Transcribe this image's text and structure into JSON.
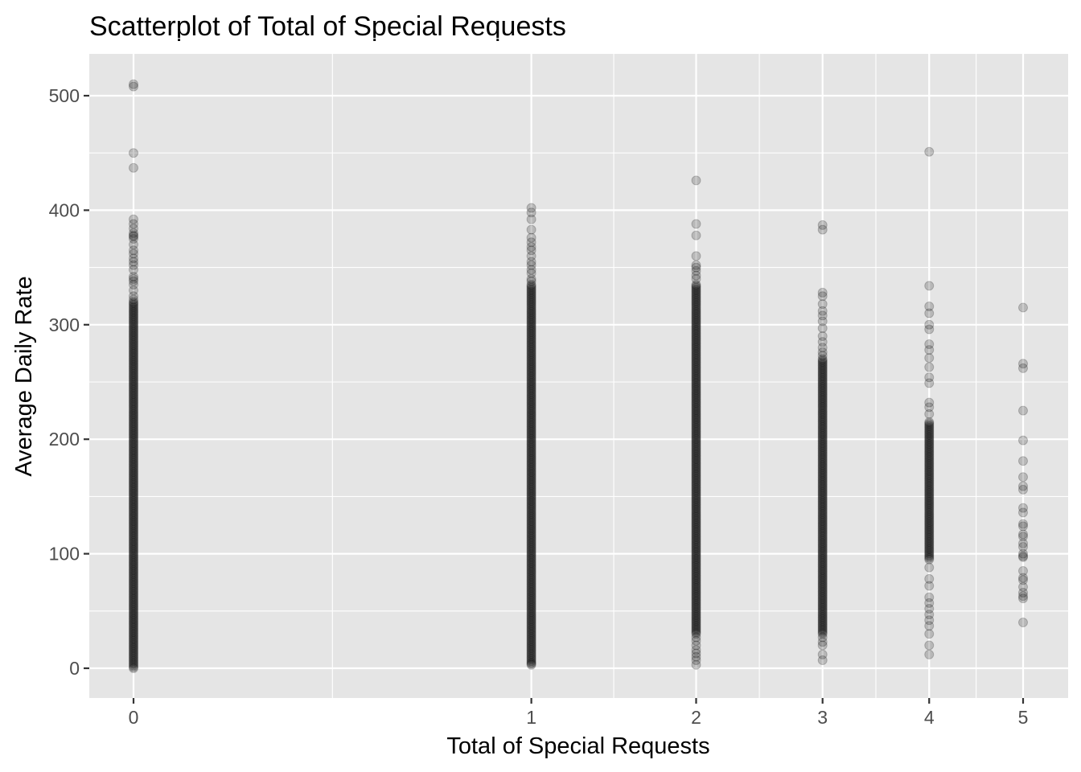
{
  "chart_data": {
    "type": "scatter",
    "title": "Scatterplot of Total of Special Requests",
    "xlabel": "Total of Special Requests",
    "ylabel": "Average Daily Rate",
    "x_scale": "sqrt",
    "xlim": [
      0,
      5
    ],
    "ylim": [
      0,
      510
    ],
    "x_ticks": [
      0,
      1,
      2,
      3,
      4,
      5
    ],
    "y_ticks": [
      0,
      100,
      200,
      300,
      400,
      500
    ],
    "grid": true,
    "legend": "none",
    "point_color": "#000000",
    "point_opacity": 0.2,
    "background_color": "#e5e5e5",
    "grid_color": "#ffffff",
    "groups": [
      {
        "x": 0,
        "dense_range": [
          0,
          320
        ],
        "points": [
          510,
          508,
          450,
          437,
          392,
          388,
          384,
          380,
          378,
          377,
          375,
          370,
          365,
          362,
          358,
          355,
          352,
          348,
          342,
          340,
          338,
          335,
          330,
          325,
          322
        ]
      },
      {
        "x": 1,
        "dense_range": [
          5,
          335
        ],
        "points": [
          402,
          398,
          392,
          383,
          376,
          372,
          368,
          365,
          360,
          355,
          352,
          348,
          345,
          340,
          338,
          3,
          4
        ]
      },
      {
        "x": 2,
        "dense_range": [
          30,
          335
        ],
        "points": [
          426,
          388,
          378,
          360,
          352,
          350,
          347,
          343,
          340,
          3,
          7,
          10,
          13,
          16,
          20,
          24,
          27
        ]
      },
      {
        "x": 3,
        "dense_range": [
          30,
          270
        ],
        "points": [
          387,
          383,
          328,
          325,
          318,
          312,
          308,
          303,
          297,
          290,
          285,
          280,
          276,
          273,
          7,
          12,
          20,
          23,
          27
        ]
      },
      {
        "x": 4,
        "dense_range": [
          95,
          215
        ],
        "points": [
          451,
          334,
          316,
          310,
          300,
          296,
          283,
          278,
          271,
          263,
          254,
          249,
          232,
          228,
          222,
          88,
          78,
          72,
          62,
          57,
          52,
          47,
          42,
          37,
          30,
          20,
          12
        ]
      },
      {
        "x": 5,
        "dense_range": null,
        "points": [
          315,
          266,
          262,
          225,
          199,
          181,
          167,
          159,
          156,
          140,
          136,
          126,
          124,
          117,
          115,
          109,
          106,
          100,
          98,
          97,
          85,
          79,
          77,
          71,
          66,
          63,
          61,
          40
        ]
      }
    ]
  }
}
